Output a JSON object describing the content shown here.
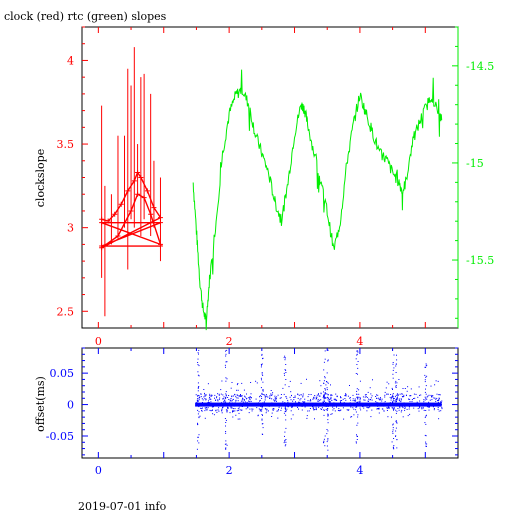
{
  "header": {
    "title": "clock (red) rtc (green) slopes"
  },
  "footer": {
    "caption": "2019-07-01 info"
  },
  "colors": {
    "red": "#ff0000",
    "green": "#00ee00",
    "blue": "#0000ff",
    "frame": "#000000"
  },
  "chart_data": [
    {
      "type": "line",
      "title": "clock (red) rtc (green) slopes",
      "xlim": [
        -0.25,
        5.5
      ],
      "xticks": [
        0,
        2,
        4
      ],
      "left_axis": {
        "label": "clockslope",
        "ylim": [
          2.4,
          4.2
        ],
        "ticks": [
          "2.5",
          "3",
          "3.5",
          "4"
        ]
      },
      "right_axis": {
        "label": "",
        "ylim": [
          -15.85,
          -14.3
        ],
        "ticks": [
          "-14.5",
          "-15",
          "-15.5"
        ]
      },
      "series": [
        {
          "color": "red",
          "axis": "left",
          "points": [
            [
              0.05,
              3.05
            ],
            [
              0.15,
              3.04
            ],
            [
              0.25,
              3.08
            ],
            [
              0.35,
              3.14
            ],
            [
              0.45,
              3.22
            ],
            [
              0.55,
              3.28
            ],
            [
              0.6,
              3.33
            ],
            [
              0.65,
              3.3
            ],
            [
              0.75,
              3.22
            ],
            [
              0.85,
              3.12
            ],
            [
              0.95,
              3.06
            ],
            [
              0.05,
              2.88
            ],
            [
              0.3,
              2.95
            ],
            [
              0.5,
              3.1
            ],
            [
              0.6,
              3.2
            ],
            [
              0.7,
              3.18
            ],
            [
              0.8,
              3.08
            ],
            [
              0.95,
              2.9
            ],
            [
              0.05,
              3.03
            ],
            [
              0.95,
              3.03
            ],
            [
              0.05,
              2.89
            ],
            [
              0.95,
              2.89
            ]
          ],
          "error_bars": [
            [
              0.05,
              2.7,
              3.73
            ],
            [
              0.1,
              2.47,
              3.25
            ],
            [
              0.2,
              2.9,
              3.2
            ],
            [
              0.3,
              2.95,
              3.55
            ],
            [
              0.4,
              3.0,
              3.55
            ],
            [
              0.45,
              2.75,
              3.95
            ],
            [
              0.5,
              3.05,
              3.85
            ],
            [
              0.55,
              3.0,
              4.08
            ],
            [
              0.6,
              3.2,
              3.5
            ],
            [
              0.65,
              2.95,
              3.9
            ],
            [
              0.7,
              3.05,
              3.92
            ],
            [
              0.8,
              2.95,
              3.8
            ],
            [
              0.85,
              3.0,
              3.4
            ],
            [
              0.95,
              2.8,
              3.3
            ]
          ]
        },
        {
          "color": "green",
          "axis": "right",
          "points": [
            [
              1.45,
              -15.1
            ],
            [
              1.5,
              -15.35
            ],
            [
              1.55,
              -15.6
            ],
            [
              1.6,
              -15.75
            ],
            [
              1.65,
              -15.82
            ],
            [
              1.7,
              -15.6
            ],
            [
              1.8,
              -15.3
            ],
            [
              1.9,
              -14.95
            ],
            [
              2.0,
              -14.75
            ],
            [
              2.1,
              -14.65
            ],
            [
              2.2,
              -14.62
            ],
            [
              2.3,
              -14.7
            ],
            [
              2.4,
              -14.85
            ],
            [
              2.5,
              -14.95
            ],
            [
              2.6,
              -15.05
            ],
            [
              2.7,
              -15.2
            ],
            [
              2.8,
              -15.3
            ],
            [
              2.9,
              -15.1
            ],
            [
              3.0,
              -14.85
            ],
            [
              3.1,
              -14.7
            ],
            [
              3.15,
              -14.72
            ],
            [
              3.2,
              -14.8
            ],
            [
              3.3,
              -14.95
            ],
            [
              3.4,
              -15.1
            ],
            [
              3.5,
              -15.25
            ],
            [
              3.6,
              -15.45
            ],
            [
              3.7,
              -15.3
            ],
            [
              3.8,
              -15.0
            ],
            [
              3.9,
              -14.8
            ],
            [
              4.0,
              -14.65
            ],
            [
              4.1,
              -14.75
            ],
            [
              4.2,
              -14.85
            ],
            [
              4.3,
              -14.95
            ],
            [
              4.4,
              -14.98
            ],
            [
              4.5,
              -15.05
            ],
            [
              4.6,
              -15.1
            ],
            [
              4.65,
              -15.15
            ],
            [
              4.7,
              -15.1
            ],
            [
              4.8,
              -14.9
            ],
            [
              4.9,
              -14.8
            ],
            [
              5.0,
              -14.72
            ],
            [
              5.1,
              -14.65
            ],
            [
              5.2,
              -14.75
            ],
            [
              5.25,
              -14.78
            ]
          ]
        }
      ]
    },
    {
      "type": "scatter",
      "xlim": [
        -0.25,
        5.5
      ],
      "xticks": [
        0,
        2,
        4
      ],
      "y_axis": {
        "label": "offset(ms)",
        "ylim": [
          -0.085,
          0.09
        ],
        "ticks": [
          "0.05",
          "0",
          "-0.05"
        ]
      },
      "series": [
        {
          "color": "blue",
          "x_range": [
            1.48,
            5.25
          ],
          "baseline": 0.0,
          "spread": 0.04,
          "spikes": [
            1.52,
            1.95,
            2.5,
            2.85,
            3.45,
            3.5,
            3.95,
            4.5,
            4.55,
            5.0
          ]
        }
      ]
    }
  ]
}
